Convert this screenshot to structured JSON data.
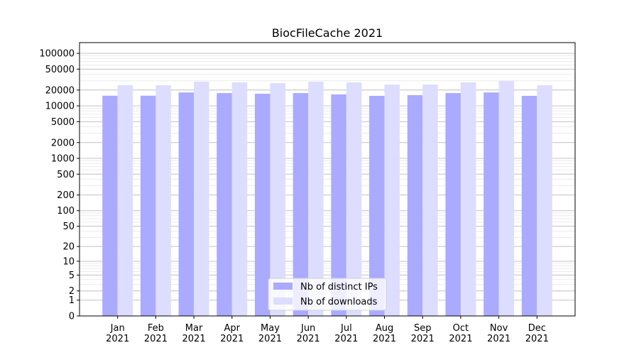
{
  "chart_data": {
    "type": "bar",
    "title": "BiocFileCache 2021",
    "xlabel": "",
    "ylabel": "",
    "yscale": "symlog",
    "ylim": [
      0,
      160000
    ],
    "yticks": [
      0,
      1,
      2,
      5,
      10,
      20,
      50,
      100,
      200,
      500,
      1000,
      2000,
      5000,
      10000,
      20000,
      50000,
      100000
    ],
    "ytick_labels": [
      "0",
      "1",
      "2",
      "5",
      "10",
      "20",
      "50",
      "100",
      "200",
      "500",
      "1000",
      "2000",
      "5000",
      "10000",
      "20000",
      "50000",
      "100000"
    ],
    "categories": [
      "Jan\n2021",
      "Feb\n2021",
      "Mar\n2021",
      "Apr\n2021",
      "May\n2021",
      "Jun\n2021",
      "Jul\n2021",
      "Aug\n2021",
      "Sep\n2021",
      "Oct\n2021",
      "Nov\n2021",
      "Dec\n2021"
    ],
    "grid": true,
    "legend_position": "lower center",
    "series": [
      {
        "name": "Nb of distinct IPs",
        "color": "#aaaaff",
        "values": [
          15600,
          15600,
          18000,
          17500,
          17000,
          17500,
          16500,
          15500,
          16000,
          17500,
          18000,
          15500
        ]
      },
      {
        "name": "Nb of downloads",
        "color": "#ddddff",
        "values": [
          24700,
          24700,
          28800,
          27900,
          27000,
          28800,
          27900,
          25400,
          25400,
          27900,
          29700,
          24700
        ]
      }
    ]
  }
}
